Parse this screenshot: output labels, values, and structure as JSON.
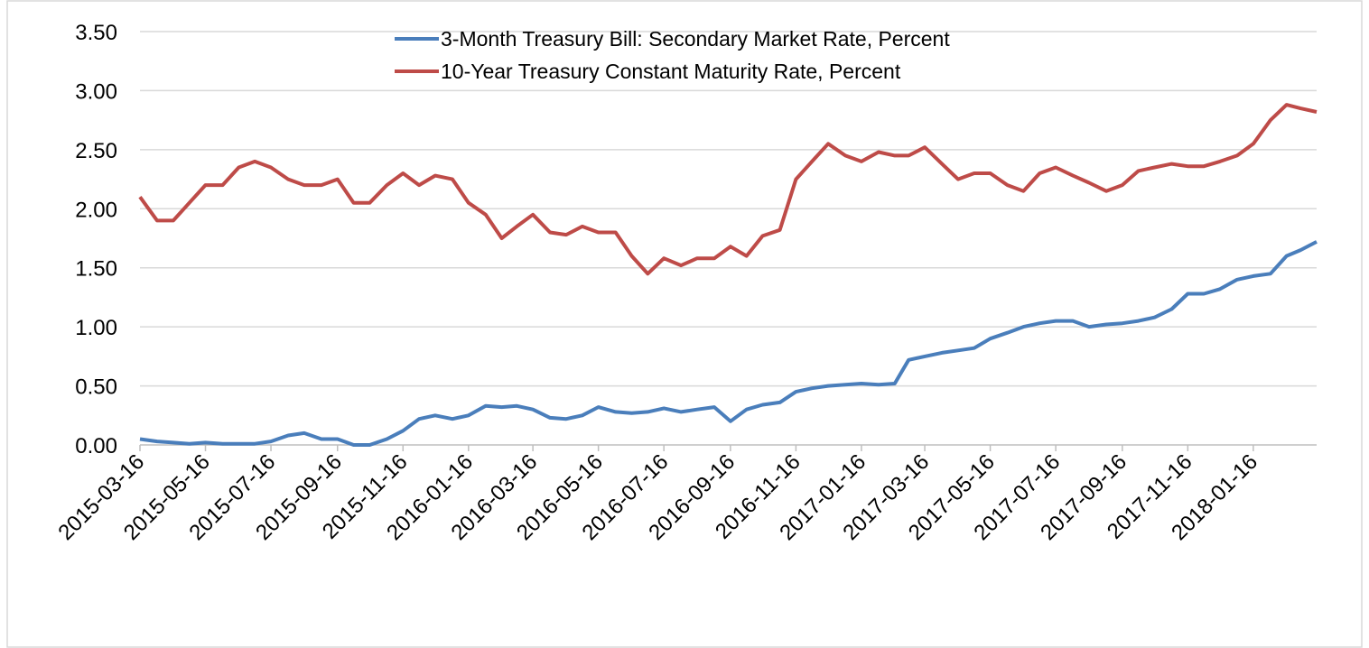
{
  "chart_data": {
    "type": "line",
    "x": [
      "2015-03-16",
      "2015-04-01",
      "2015-04-16",
      "2015-05-01",
      "2015-05-16",
      "2015-06-01",
      "2015-06-16",
      "2015-07-01",
      "2015-07-16",
      "2015-08-01",
      "2015-08-16",
      "2015-09-01",
      "2015-09-16",
      "2015-10-01",
      "2015-10-16",
      "2015-11-01",
      "2015-11-16",
      "2015-12-01",
      "2015-12-16",
      "2016-01-01",
      "2016-01-16",
      "2016-02-01",
      "2016-02-16",
      "2016-03-01",
      "2016-03-16",
      "2016-04-01",
      "2016-04-16",
      "2016-05-01",
      "2016-05-16",
      "2016-06-01",
      "2016-06-16",
      "2016-07-01",
      "2016-07-16",
      "2016-08-01",
      "2016-08-16",
      "2016-09-01",
      "2016-09-16",
      "2016-10-01",
      "2016-10-16",
      "2016-11-01",
      "2016-11-16",
      "2016-12-01",
      "2016-12-16",
      "2017-01-01",
      "2017-01-16",
      "2017-02-01",
      "2017-02-16",
      "2017-03-01",
      "2017-03-16",
      "2017-04-01",
      "2017-04-16",
      "2017-05-01",
      "2017-05-16",
      "2017-06-01",
      "2017-06-16",
      "2017-07-01",
      "2017-07-16",
      "2017-08-01",
      "2017-08-16",
      "2017-09-01",
      "2017-09-16",
      "2017-10-01",
      "2017-10-16",
      "2017-11-01",
      "2017-11-16",
      "2017-12-01",
      "2017-12-16",
      "2018-01-01",
      "2018-01-16",
      "2018-02-01",
      "2018-02-16",
      "2018-03-01",
      "2018-03-16"
    ],
    "series": [
      {
        "name": "3-Month Treasury Bill: Secondary Market Rate, Percent",
        "color": "#4a7ebb",
        "values": [
          0.05,
          0.03,
          0.02,
          0.01,
          0.02,
          0.01,
          0.01,
          0.01,
          0.03,
          0.08,
          0.1,
          0.05,
          0.05,
          0.0,
          0.0,
          0.05,
          0.12,
          0.22,
          0.25,
          0.22,
          0.25,
          0.33,
          0.32,
          0.33,
          0.3,
          0.23,
          0.22,
          0.25,
          0.32,
          0.28,
          0.27,
          0.28,
          0.31,
          0.28,
          0.3,
          0.32,
          0.2,
          0.3,
          0.34,
          0.36,
          0.45,
          0.48,
          0.5,
          0.51,
          0.52,
          0.51,
          0.52,
          0.72,
          0.75,
          0.78,
          0.8,
          0.82,
          0.9,
          0.95,
          1.0,
          1.03,
          1.05,
          1.05,
          1.0,
          1.02,
          1.03,
          1.05,
          1.08,
          1.15,
          1.28,
          1.28,
          1.32,
          1.4,
          1.43,
          1.45,
          1.6,
          1.65,
          1.72
        ]
      },
      {
        "name": "10-Year Treasury Constant Maturity Rate, Percent",
        "color": "#be4b48",
        "values": [
          2.1,
          1.9,
          1.9,
          2.05,
          2.2,
          2.2,
          2.35,
          2.4,
          2.35,
          2.25,
          2.2,
          2.2,
          2.25,
          2.05,
          2.05,
          2.2,
          2.3,
          2.2,
          2.28,
          2.25,
          2.05,
          1.95,
          1.75,
          1.85,
          1.95,
          1.8,
          1.78,
          1.85,
          1.8,
          1.8,
          1.6,
          1.45,
          1.58,
          1.52,
          1.58,
          1.58,
          1.68,
          1.6,
          1.77,
          1.82,
          2.25,
          2.4,
          2.55,
          2.45,
          2.4,
          2.48,
          2.45,
          2.45,
          2.52,
          2.38,
          2.25,
          2.3,
          2.3,
          2.2,
          2.15,
          2.3,
          2.35,
          2.28,
          2.22,
          2.15,
          2.2,
          2.32,
          2.35,
          2.38,
          2.36,
          2.36,
          2.4,
          2.45,
          2.55,
          2.75,
          2.88,
          2.85,
          2.82
        ]
      }
    ],
    "xlim": [
      "2015-03-16",
      "2018-03-16"
    ],
    "xticks": [
      "2015-03-16",
      "2015-05-16",
      "2015-07-16",
      "2015-09-16",
      "2015-11-16",
      "2016-01-16",
      "2016-03-16",
      "2016-05-16",
      "2016-07-16",
      "2016-09-16",
      "2016-11-16",
      "2017-01-16",
      "2017-03-16",
      "2017-05-16",
      "2017-07-16",
      "2017-09-16",
      "2017-11-16",
      "2018-01-16"
    ],
    "ylim": [
      0,
      3.5
    ],
    "yticks": [
      {
        "value": 0,
        "label": "0.00"
      },
      {
        "value": 0.5,
        "label": "0.50"
      },
      {
        "value": 1,
        "label": "1.00"
      },
      {
        "value": 1.5,
        "label": "1.50"
      },
      {
        "value": 2,
        "label": "2.00"
      },
      {
        "value": 2.5,
        "label": "2.50"
      },
      {
        "value": 3,
        "label": "3.00"
      },
      {
        "value": 3.5,
        "label": "3.50"
      }
    ],
    "grid": true
  }
}
